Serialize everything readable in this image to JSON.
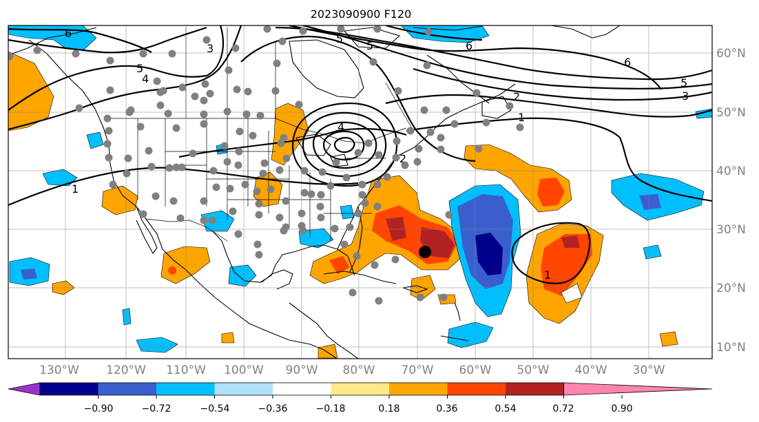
{
  "title": "2023090900 F120",
  "map": {
    "lon_ticks": [
      "130°W",
      "120°W",
      "110°W",
      "100°W",
      "90°W",
      "80°W",
      "70°W",
      "60°W",
      "50°W",
      "40°W",
      "30°W"
    ],
    "lat_ticks": [
      "60°N",
      "50°N",
      "40°N",
      "30°N",
      "20°N",
      "10°N"
    ],
    "contour_labels": [
      "6",
      "3",
      "5",
      "4",
      "4",
      "5",
      "2",
      "6",
      "6",
      "5",
      "3",
      "2",
      "1",
      "1",
      "5",
      "1"
    ],
    "storm_center": "black-dot"
  },
  "colorbar": {
    "labels": [
      "−0.90",
      "−0.72",
      "−0.54",
      "−0.36",
      "−0.18",
      "0.18",
      "0.36",
      "0.54",
      "0.72",
      "0.90"
    ],
    "colors": [
      "#9932cc",
      "#00008b",
      "#3a5fcd",
      "#00bfff",
      "#b0e0fa",
      "#ffffff",
      "#ffe88a",
      "#ffa500",
      "#ff4500",
      "#b22222",
      "#ff85b0"
    ]
  },
  "palette": {
    "orange": "#ffa500",
    "red": "#ff4500",
    "darkred": "#b22222",
    "yellow": "#ffe88a",
    "lightblue": "#b0e0fa",
    "skyblue": "#00bfff",
    "royalblue": "#3a5fcd",
    "navy": "#00008b",
    "station": "#808080"
  }
}
